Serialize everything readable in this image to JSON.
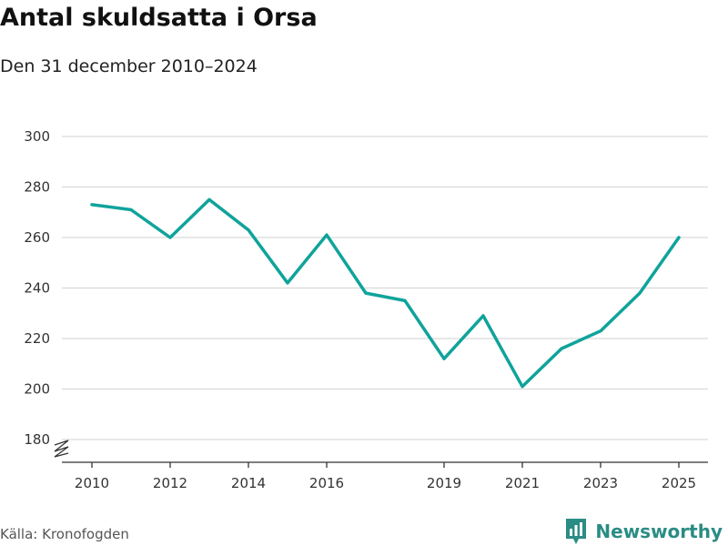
{
  "header": {
    "title": "Antal skuldsatta i Orsa",
    "subtitle": "Den 31 december 2010–2024"
  },
  "footer": {
    "source": "Källa: Kronofogden",
    "brand": "Newsworthy",
    "brand_icon": "newsworthy-logo-icon"
  },
  "colors": {
    "line": "#0fa39b",
    "grid": "#d9d9d9",
    "axis": "#333333",
    "brand": "#2a8c84"
  },
  "chart_data": {
    "type": "line",
    "title": "Antal skuldsatta i Orsa",
    "subtitle": "Den 31 december 2010–2024",
    "xlabel": "",
    "ylabel": "",
    "x": [
      2010,
      2011,
      2012,
      2013,
      2014,
      2015,
      2016,
      2017,
      2018,
      2019,
      2020,
      2021,
      2022,
      2023,
      2024,
      2025
    ],
    "values": [
      273,
      271,
      260,
      275,
      263,
      242,
      261,
      238,
      235,
      212,
      229,
      201,
      216,
      223,
      238,
      260
    ],
    "x_ticks": [
      2010,
      2012,
      2014,
      2016,
      2019,
      2021,
      2023,
      2025
    ],
    "y_ticks": [
      180,
      200,
      220,
      240,
      260,
      280,
      300
    ],
    "ylim": [
      180,
      300
    ],
    "xlim": [
      2010,
      2025
    ],
    "axis_break": true,
    "grid": true,
    "legend": "none"
  }
}
